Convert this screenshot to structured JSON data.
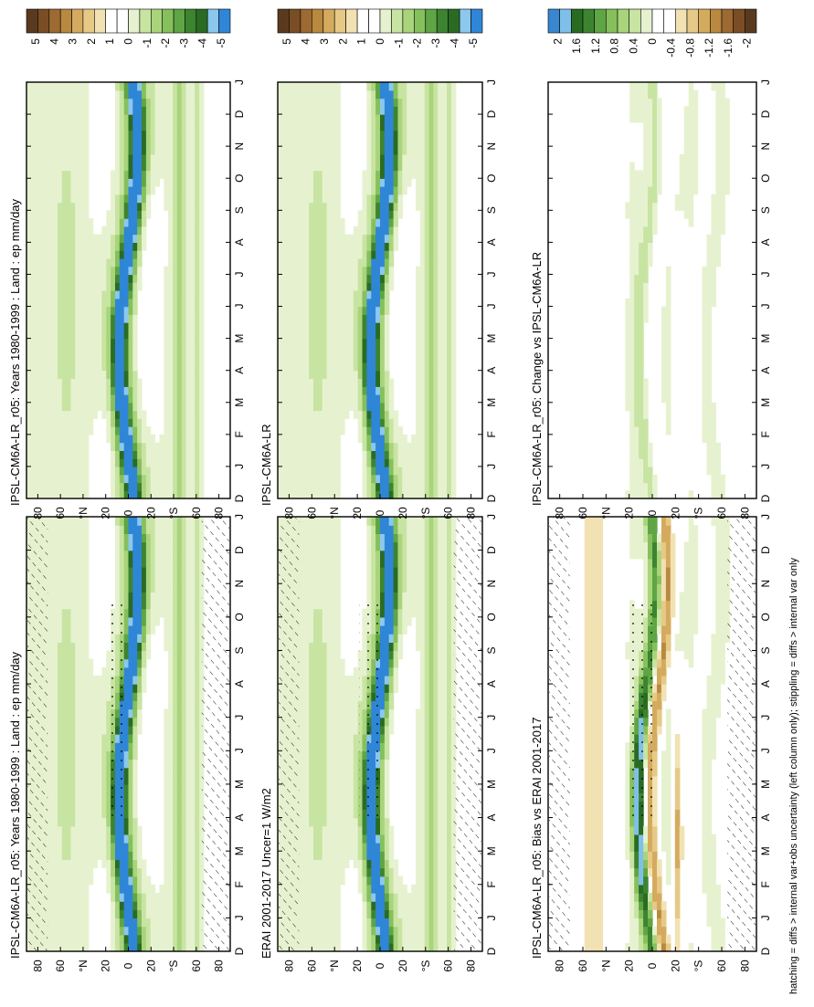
{
  "figure": {
    "footnote": "hatching = diffs > internal var+obs uncertainty (left column only); stippling = diffs > internal var only"
  },
  "palettes": {
    "main": [
      "#5a3a1e",
      "#7a4d24",
      "#9c6a32",
      "#b8893f",
      "#d4ab5e",
      "#e6c986",
      "#f2e2b3",
      "#ffffff",
      "#ffffff",
      "#e6f2cf",
      "#c8e4a2",
      "#a9d47c",
      "#86c05d",
      "#5fa544",
      "#3d8431",
      "#2a6b24",
      "#8cc8ee",
      "#2f86d6"
    ],
    "diff": [
      "#3a86d1",
      "#7fc0ea",
      "#2a6b24",
      "#3d8431",
      "#5fa544",
      "#86c05d",
      "#a9d47c",
      "#c8e4a2",
      "#e6f2cf",
      "#ffffff",
      "#ffffff",
      "#f2e2b3",
      "#e6c986",
      "#d4ab5e",
      "#b8893f",
      "#9c6a32",
      "#7a4d24",
      "#5a3a1e"
    ]
  },
  "colorbars": {
    "main_labels": [
      "5",
      "4",
      "3",
      "2",
      "1",
      "0",
      "-1",
      "-2",
      "-3",
      "-4",
      "-5"
    ],
    "diff_labels": [
      "2",
      "1.6",
      "1.2",
      "0.8",
      "0.4",
      "0",
      "-0.4",
      "-0.8",
      "-1.2",
      "-1.6",
      "-2"
    ]
  },
  "panels": [
    {
      "id": "p1",
      "title": "IPSL-CM6A-LR_r05: Years 1980-1999 : Land : ep mm/day",
      "kind": "main",
      "hatch": true
    },
    {
      "id": "p2",
      "title": "IPSL-CM6A-LR_r05: Years 1980-1999 : Land : ep mm/day",
      "kind": "main",
      "hatch": false
    },
    {
      "id": "p3",
      "title": "ERAI 2001-2017 Uncer=1 W/m2",
      "kind": "main",
      "hatch": true
    },
    {
      "id": "p4",
      "title": "IPSL-CM6A-LR",
      "kind": "main",
      "hatch": false
    },
    {
      "id": "p5",
      "title": "IPSL-CM6A-LR_r05: Bias vs ERAI 2001-2017",
      "kind": "diff",
      "hatch": true
    },
    {
      "id": "p6",
      "title": "IPSL-CM6A-LR_r05: Change vs IPSL-CM6A-LR",
      "kind": "diff",
      "hatch": false
    }
  ],
  "chart_data": {
    "type": "heatmap",
    "x": [
      "D",
      "J",
      "F",
      "M",
      "A",
      "M",
      "J",
      "J",
      "A",
      "S",
      "O",
      "N",
      "D",
      "J"
    ],
    "y_ticks": [
      "80",
      "60",
      "°N",
      "20",
      "0",
      "20",
      "°S",
      "60",
      "80"
    ],
    "y_values": [
      80,
      60,
      40,
      20,
      0,
      -20,
      -40,
      -60,
      -80
    ],
    "ylim": [
      -90,
      90
    ],
    "colorbar_main": [
      5,
      4,
      3,
      2,
      1,
      0,
      -1,
      -2,
      -3,
      -4,
      -5
    ],
    "colorbar_diff": [
      2,
      1.6,
      1.2,
      0.8,
      0.4,
      0,
      -0.4,
      -0.8,
      -1.2,
      -1.6,
      -2
    ]
  }
}
